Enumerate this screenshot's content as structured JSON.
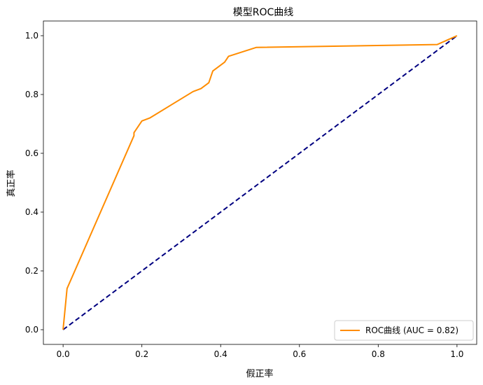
{
  "chart_data": {
    "type": "line",
    "title": "模型ROC曲线",
    "xlabel": "假正率",
    "ylabel": "真正率",
    "xlim": [
      -0.05,
      1.05
    ],
    "ylim": [
      -0.05,
      1.05
    ],
    "xticks": [
      0.0,
      0.2,
      0.4,
      0.6,
      0.8,
      1.0
    ],
    "yticks": [
      0.0,
      0.2,
      0.4,
      0.6,
      0.8,
      1.0
    ],
    "xtick_labels": [
      "0.0",
      "0.2",
      "0.4",
      "0.6",
      "0.8",
      "1.0"
    ],
    "ytick_labels": [
      "0.0",
      "0.2",
      "0.4",
      "0.6",
      "0.8",
      "1.0"
    ],
    "grid": false,
    "legend_position": "lower-right",
    "series": [
      {
        "name": "ROC曲线 (AUC = 0.82)",
        "color": "#ff8c00",
        "style": "solid",
        "x": [
          0.0,
          0.01,
          0.18,
          0.18,
          0.2,
          0.22,
          0.33,
          0.35,
          0.37,
          0.38,
          0.41,
          0.42,
          0.49,
          0.95,
          1.0
        ],
        "y": [
          0.0,
          0.14,
          0.66,
          0.67,
          0.71,
          0.72,
          0.81,
          0.82,
          0.84,
          0.88,
          0.91,
          0.93,
          0.96,
          0.97,
          1.0
        ]
      },
      {
        "name": "",
        "color": "#000080",
        "style": "dashed",
        "x": [
          0.0,
          1.0
        ],
        "y": [
          0.0,
          1.0
        ]
      }
    ]
  }
}
